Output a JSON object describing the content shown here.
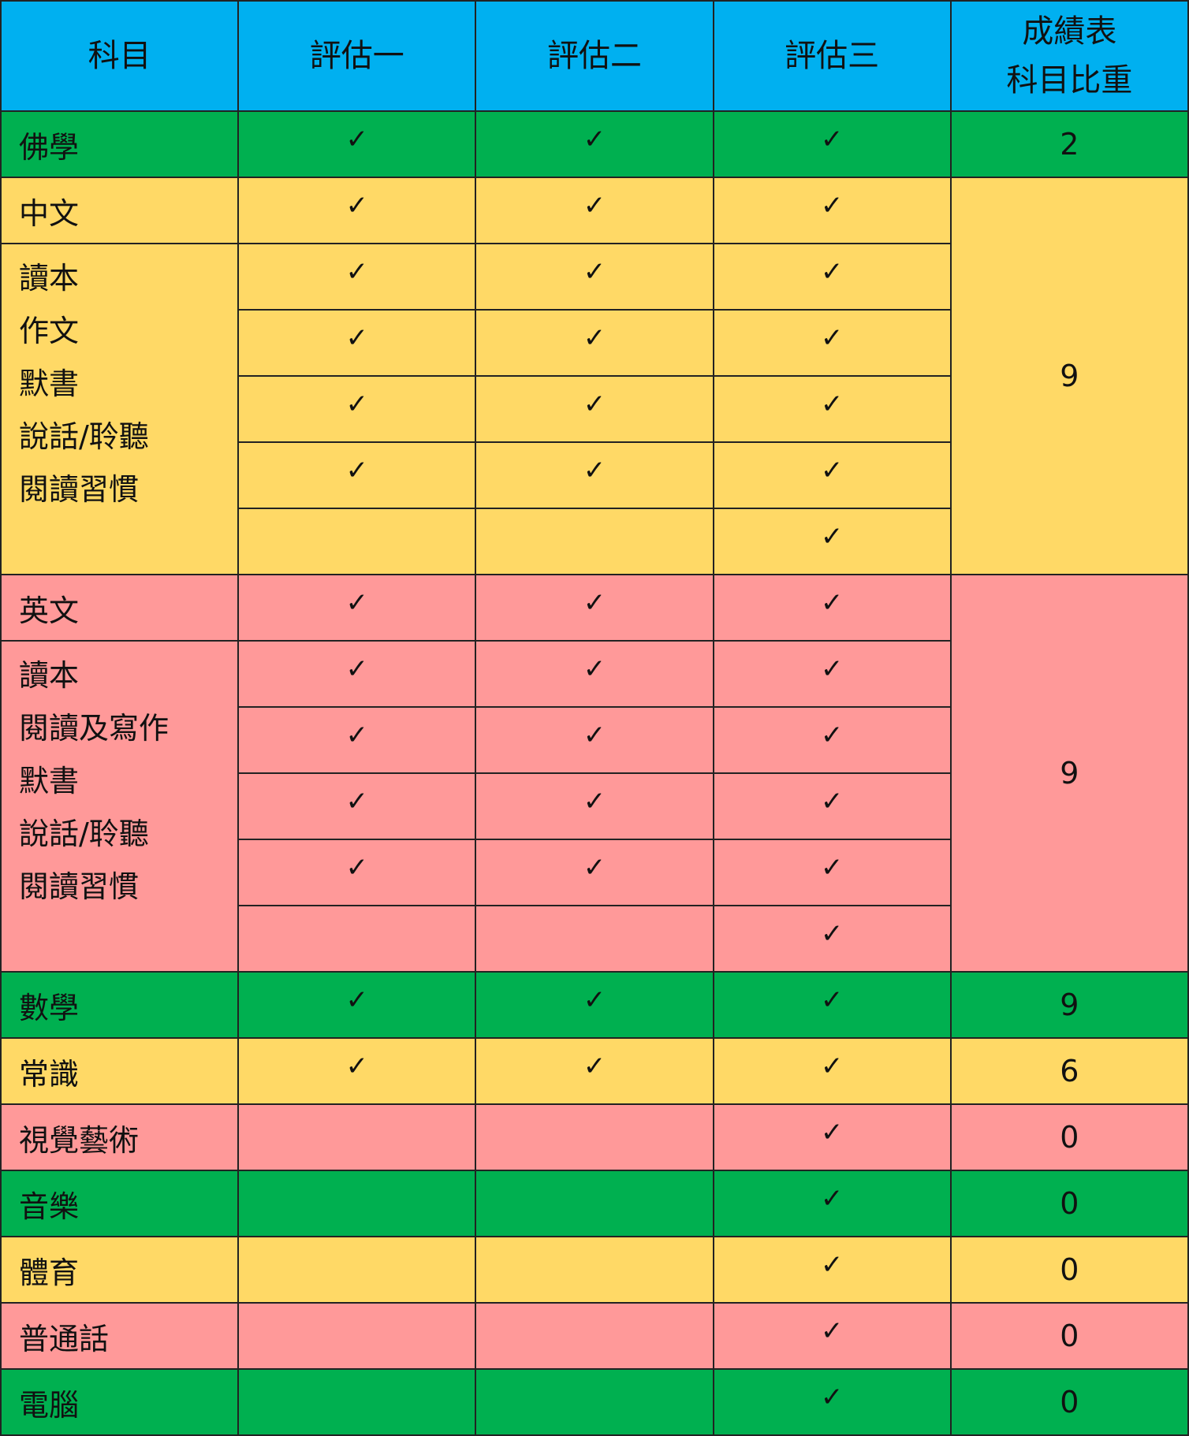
{
  "colors": {
    "header": "#00b0f0",
    "green": "#00b050",
    "yellow": "#ffd966",
    "pink": "#ff9999"
  },
  "check_icon": "✓",
  "headers": [
    "科目",
    "評估一",
    "評估二",
    "評估三",
    "成績表\n科目比重"
  ],
  "sections": [
    {
      "label": "佛學",
      "color": "green",
      "weight": "2",
      "rows": [
        [
          "✓",
          "✓",
          "✓"
        ]
      ]
    },
    {
      "label": "中文",
      "color": "yellow",
      "weight": "9",
      "rows": [
        [
          "✓",
          "✓",
          "✓"
        ]
      ],
      "sub_labels": [
        "讀本",
        "作文",
        "默書",
        "說話/聆聽",
        "閱讀習慣"
      ],
      "sub_rows": [
        [
          "✓",
          "✓",
          "✓"
        ],
        [
          "✓",
          "✓",
          "✓"
        ],
        [
          "✓",
          "✓",
          "✓"
        ],
        [
          "✓",
          "✓",
          "✓"
        ],
        [
          "",
          "",
          "✓"
        ]
      ]
    },
    {
      "label": "英文",
      "color": "pink",
      "weight": "9",
      "rows": [
        [
          "✓",
          "✓",
          "✓"
        ]
      ],
      "sub_labels": [
        "讀本",
        "閱讀及寫作",
        "默書",
        "說話/聆聽",
        "閱讀習慣"
      ],
      "sub_rows": [
        [
          "✓",
          "✓",
          "✓"
        ],
        [
          "✓",
          "✓",
          "✓"
        ],
        [
          "✓",
          "✓",
          "✓"
        ],
        [
          "✓",
          "✓",
          "✓"
        ],
        [
          "",
          "",
          "✓"
        ]
      ]
    },
    {
      "label": "數學",
      "color": "green",
      "weight": "9",
      "rows": [
        [
          "✓",
          "✓",
          "✓"
        ]
      ]
    },
    {
      "label": "常識",
      "color": "yellow",
      "weight": "6",
      "rows": [
        [
          "✓",
          "✓",
          "✓"
        ]
      ]
    },
    {
      "label": "視覺藝術",
      "color": "pink",
      "weight": "0",
      "rows": [
        [
          "",
          "",
          "✓"
        ]
      ]
    },
    {
      "label": "音樂",
      "color": "green",
      "weight": "0",
      "rows": [
        [
          "",
          "",
          "✓"
        ]
      ]
    },
    {
      "label": "體育",
      "color": "yellow",
      "weight": "0",
      "rows": [
        [
          "",
          "",
          "✓"
        ]
      ]
    },
    {
      "label": "普通話",
      "color": "pink",
      "weight": "0",
      "rows": [
        [
          "",
          "",
          "✓"
        ]
      ]
    },
    {
      "label": "電腦",
      "color": "green",
      "weight": "0",
      "rows": [
        [
          "",
          "",
          "✓"
        ]
      ]
    }
  ]
}
